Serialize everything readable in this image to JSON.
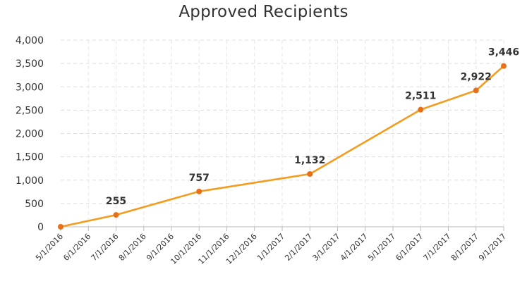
{
  "chart_data": {
    "type": "line",
    "title": "Approved Recipients",
    "xlabel": "",
    "ylabel": "",
    "ylim": [
      0,
      4000
    ],
    "yticks": [
      "0",
      "500",
      "1,000",
      "1,500",
      "2,000",
      "2,500",
      "3,000",
      "3,500",
      "4,000"
    ],
    "x_tick_labels": [
      "5/1/2016",
      "6/1/2016",
      "7/1/2016",
      "8/1/2016",
      "9/1/2016",
      "10/1/2016",
      "11/1/2016",
      "12/1/2016",
      "1/1/2017",
      "2/1/2017",
      "3/1/2017",
      "4/1/2017",
      "5/1/2017",
      "6/1/2017",
      "7/1/2017",
      "8/1/2017",
      "9/1/2017"
    ],
    "x": [
      "5/1/2016",
      "7/1/2016",
      "10/1/2016",
      "2/1/2017",
      "6/1/2017",
      "8/1/2017",
      "9/1/2017"
    ],
    "series": [
      {
        "values": [
          0,
          255,
          757,
          1132,
          2511,
          2922,
          3446
        ],
        "data_labels": [
          "",
          "255",
          "757",
          "1,132",
          "2,511",
          "2,922",
          "3,446"
        ],
        "color": "#f39c1e"
      }
    ],
    "grid": {
      "horizontal": true,
      "vertical": true
    },
    "colors": {
      "line": "#f39c1e",
      "marker": "#e8701a",
      "grid": "#dddddd",
      "axis": "#bbbbbb",
      "text": "#333333"
    }
  }
}
